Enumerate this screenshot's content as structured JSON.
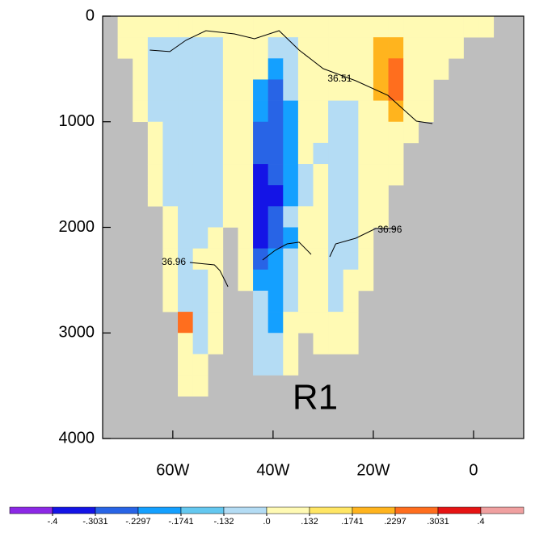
{
  "chart_data": {
    "type": "heatmap",
    "annotation": "R1",
    "xbins": [
      -74,
      -71,
      -68,
      -65,
      -62,
      -59,
      -56,
      -53,
      -50,
      -47,
      -44,
      -41,
      -38,
      -35,
      -32,
      -29,
      -26,
      -23,
      -20,
      -17,
      -14,
      -11,
      -8,
      -5,
      -2,
      1,
      4,
      7,
      10
    ],
    "ybins": [
      0,
      200,
      400,
      600,
      800,
      1000,
      1200,
      1400,
      1600,
      1800,
      2000,
      2200,
      2400,
      2600,
      2800,
      3000,
      3200,
      3400,
      3600
    ],
    "values": [
      [
        null,
        0.06,
        0.06,
        0.06,
        0.06,
        0.06,
        0.06,
        0.06,
        0.06,
        0.06,
        0.06,
        0.06,
        0.06,
        0.06,
        0.06,
        0.06,
        0.06,
        0.06,
        0.06,
        0.06,
        0.06,
        0.06,
        0.06,
        0.06,
        0.06,
        0.06,
        null,
        null
      ],
      [
        null,
        0.06,
        0.06,
        -0.06,
        -0.06,
        -0.06,
        -0.06,
        -0.06,
        0.06,
        0.06,
        0.06,
        -0.06,
        -0.06,
        0.06,
        0.06,
        0.06,
        0.06,
        0.06,
        0.2,
        0.2,
        0.06,
        0.06,
        0.06,
        0.06,
        null,
        null,
        null,
        null
      ],
      [
        null,
        null,
        0.06,
        -0.06,
        -0.06,
        -0.06,
        -0.06,
        -0.06,
        0.06,
        0.06,
        0.06,
        -0.2,
        -0.06,
        0.06,
        0.06,
        0.06,
        0.06,
        0.06,
        0.2,
        0.25,
        0.06,
        0.06,
        0.06,
        null,
        null,
        null,
        null,
        null
      ],
      [
        null,
        null,
        0.06,
        -0.06,
        -0.06,
        -0.06,
        -0.06,
        -0.06,
        0.06,
        0.06,
        -0.2,
        -0.25,
        -0.06,
        0.06,
        0.06,
        0.06,
        0.06,
        0.06,
        0.2,
        0.25,
        0.06,
        0.06,
        null,
        null,
        null,
        null,
        null,
        null
      ],
      [
        null,
        null,
        0.06,
        -0.06,
        -0.06,
        -0.06,
        -0.06,
        -0.06,
        0.06,
        0.06,
        -0.2,
        -0.25,
        -0.2,
        0.06,
        0.06,
        -0.06,
        -0.06,
        0.06,
        0.06,
        0.2,
        0.06,
        0.06,
        null,
        null,
        null,
        null,
        null,
        null
      ],
      [
        null,
        null,
        null,
        0.06,
        -0.06,
        -0.06,
        -0.06,
        -0.06,
        0.06,
        0.06,
        -0.25,
        -0.25,
        -0.2,
        0.06,
        0.06,
        -0.06,
        -0.06,
        0.06,
        0.06,
        0.06,
        0.06,
        null,
        null,
        null,
        null,
        null,
        null,
        null
      ],
      [
        null,
        null,
        null,
        0.06,
        -0.06,
        -0.06,
        -0.06,
        -0.06,
        0.06,
        0.06,
        -0.25,
        -0.25,
        -0.2,
        0.06,
        -0.06,
        -0.06,
        -0.06,
        0.06,
        0.06,
        0.06,
        null,
        null,
        null,
        null,
        null,
        null,
        null,
        null
      ],
      [
        null,
        null,
        null,
        0.06,
        -0.06,
        -0.06,
        -0.06,
        -0.06,
        0.06,
        0.06,
        -0.35,
        -0.25,
        -0.2,
        -0.06,
        0.06,
        -0.06,
        -0.06,
        0.06,
        0.06,
        0.06,
        null,
        null,
        null,
        null,
        null,
        null,
        null,
        null
      ],
      [
        null,
        null,
        null,
        0.06,
        -0.06,
        -0.06,
        -0.06,
        -0.06,
        0.06,
        0.06,
        -0.35,
        -0.35,
        -0.2,
        -0.06,
        0.06,
        -0.06,
        -0.06,
        0.06,
        0.06,
        null,
        null,
        null,
        null,
        null,
        null,
        null,
        null,
        null
      ],
      [
        null,
        null,
        null,
        null,
        0.06,
        -0.06,
        -0.06,
        -0.06,
        0.06,
        0.06,
        -0.35,
        -0.25,
        -0.06,
        0.06,
        0.06,
        -0.06,
        -0.06,
        0.06,
        0.06,
        null,
        null,
        null,
        null,
        null,
        null,
        null,
        null,
        null
      ],
      [
        null,
        null,
        null,
        null,
        0.06,
        -0.06,
        -0.06,
        0.06,
        null,
        0.06,
        -0.35,
        -0.25,
        -0.2,
        0.06,
        0.06,
        -0.06,
        -0.06,
        0.06,
        null,
        null,
        null,
        null,
        null,
        null,
        null,
        null,
        null,
        null
      ],
      [
        null,
        null,
        null,
        null,
        0.06,
        -0.06,
        0.06,
        0.06,
        null,
        0.06,
        -0.25,
        -0.2,
        -0.06,
        0.06,
        0.06,
        -0.06,
        -0.06,
        0.06,
        null,
        null,
        null,
        null,
        null,
        null,
        null,
        null,
        null,
        null
      ],
      [
        null,
        null,
        null,
        null,
        0.06,
        -0.06,
        -0.06,
        0.06,
        null,
        0.06,
        -0.2,
        -0.2,
        -0.06,
        0.06,
        0.06,
        -0.06,
        0.06,
        0.06,
        null,
        null,
        null,
        null,
        null,
        null,
        null,
        null,
        null,
        null
      ],
      [
        null,
        null,
        null,
        null,
        0.06,
        -0.06,
        -0.06,
        0.06,
        null,
        null,
        -0.06,
        -0.2,
        -0.06,
        0.06,
        0.06,
        -0.06,
        0.06,
        null,
        null,
        null,
        null,
        null,
        null,
        null,
        null,
        null,
        null,
        null
      ],
      [
        null,
        null,
        null,
        null,
        null,
        0.25,
        -0.06,
        0.06,
        null,
        null,
        -0.06,
        -0.2,
        0.06,
        0.06,
        0.06,
        0.06,
        0.06,
        null,
        null,
        null,
        null,
        null,
        null,
        null,
        null,
        null,
        null,
        null
      ],
      [
        null,
        null,
        null,
        null,
        null,
        0.06,
        -0.06,
        0.06,
        null,
        null,
        -0.06,
        -0.06,
        0.06,
        null,
        0.06,
        0.06,
        0.06,
        null,
        null,
        null,
        null,
        null,
        null,
        null,
        null,
        null,
        null,
        null
      ],
      [
        null,
        null,
        null,
        null,
        null,
        0.06,
        0.06,
        null,
        null,
        null,
        -0.06,
        -0.06,
        0.06,
        null,
        null,
        null,
        null,
        null,
        null,
        null,
        null,
        null,
        null,
        null,
        null,
        null,
        null,
        null
      ],
      [
        null,
        null,
        null,
        null,
        null,
        0.06,
        0.06,
        null,
        null,
        null,
        null,
        null,
        null,
        null,
        null,
        null,
        null,
        null,
        null,
        null,
        null,
        null,
        null,
        null,
        null,
        null,
        null,
        null
      ]
    ],
    "xlim": [
      -74,
      10
    ],
    "ylim": [
      4000,
      0
    ],
    "xticks": [
      {
        "value": -60,
        "label": "60W"
      },
      {
        "value": -40,
        "label": "40W"
      },
      {
        "value": -20,
        "label": "20W"
      },
      0
    ],
    "yticks": [
      0,
      1000,
      2000,
      3000,
      4000
    ],
    "land_color": "#bebebe",
    "colorbar": {
      "colors": [
        "#8c28e6",
        "#1414e6",
        "#2864e6",
        "#14a0ff",
        "#64c8f0",
        "#b4dcf4",
        "#fffab4",
        "#ffe664",
        "#ffb41e",
        "#ff6e1e",
        "#e61414",
        "#f0a0a0"
      ],
      "ticks": [
        {
          "value": -0.4,
          "label": "-.4"
        },
        {
          "value": -0.3031,
          "label": "-.3031"
        },
        {
          "value": -0.2297,
          "label": "-.2297"
        },
        {
          "value": -0.1741,
          "label": "-.1741"
        },
        {
          "value": -0.132,
          "label": "-.132"
        },
        {
          "value": 0,
          "label": ".0"
        },
        {
          "value": 0.132,
          "label": ".132"
        },
        {
          "value": 0.1741,
          "label": ".1741"
        },
        {
          "value": 0.2297,
          "label": ".2297"
        },
        {
          "value": 0.3031,
          "label": ".3031"
        },
        {
          "value": 0.4,
          "label": ".4"
        }
      ]
    },
    "contours": [
      {
        "label": "36.51",
        "label_at": [
          -26.7,
          597
        ],
        "x": [
          -64.6,
          -60.6,
          -57.4,
          -53.4,
          -47.7,
          -43.7,
          -38.8,
          -34.8,
          -30.0,
          -23.5,
          -17.1,
          -11.4,
          -8.2
        ],
        "y": [
          321,
          336,
          229,
          138,
          168,
          214,
          138,
          321,
          497,
          612,
          750,
          994,
          1017
        ]
      },
      {
        "label": "36.96",
        "label_at": [
          -16.7,
          2027
        ],
        "x": [
          -42.1,
          -39.6,
          -37.2,
          -34.8,
          -32.4,
          null,
          -28.7,
          -27.5,
          -23.5,
          -19.5,
          -15.5
        ],
        "y": [
          2310,
          2218,
          2157,
          2141,
          2256,
          null,
          2279,
          2157,
          2103,
          2011,
          2011
        ]
      },
      {
        "label": "36.96",
        "label_at": [
          -59.8,
          2333
        ],
        "x": [
          -56.6,
          -51.7,
          -50.6,
          -49.0
        ],
        "y": [
          2333,
          2356,
          2409,
          2562
        ]
      }
    ]
  }
}
